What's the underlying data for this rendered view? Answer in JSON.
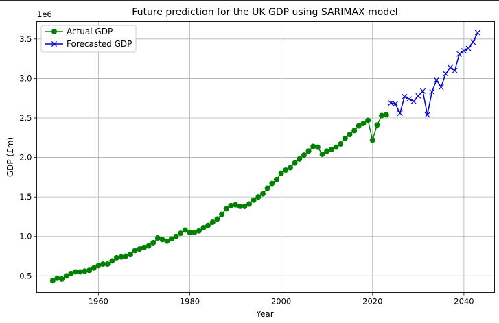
{
  "chart_data": {
    "type": "line",
    "title": "Future prediction for the UK GDP using SARIMAX model",
    "xlabel": "Year",
    "ylabel": "GDP (£m)",
    "y_offset_label": "1e6",
    "xlim": [
      1946.5,
      2046.7
    ],
    "ylim": [
      0.29,
      3.72
    ],
    "x_ticks": [
      1960,
      1980,
      2000,
      2020,
      2040
    ],
    "x_tick_labels": [
      "1960",
      "1980",
      "2000",
      "2020",
      "2040"
    ],
    "y_ticks": [
      0.5,
      1.0,
      1.5,
      2.0,
      2.5,
      3.0,
      3.5
    ],
    "y_tick_labels": [
      "0.5",
      "1.0",
      "1.5",
      "2.0",
      "2.5",
      "3.0",
      "3.5"
    ],
    "grid": true,
    "legend_position": "upper-left",
    "series": [
      {
        "name": "Actual GDP",
        "color": "#008000",
        "marker": "circle",
        "x": [
          1950,
          1951,
          1952,
          1953,
          1954,
          1955,
          1956,
          1957,
          1958,
          1959,
          1960,
          1961,
          1962,
          1963,
          1964,
          1965,
          1966,
          1967,
          1968,
          1969,
          1970,
          1971,
          1972,
          1973,
          1974,
          1975,
          1976,
          1977,
          1978,
          1979,
          1980,
          1981,
          1982,
          1983,
          1984,
          1985,
          1986,
          1987,
          1988,
          1989,
          1990,
          1991,
          1992,
          1993,
          1994,
          1995,
          1996,
          1997,
          1998,
          1999,
          2000,
          2001,
          2002,
          2003,
          2004,
          2005,
          2006,
          2007,
          2008,
          2009,
          2010,
          2011,
          2012,
          2013,
          2014,
          2015,
          2016,
          2017,
          2018,
          2019,
          2020,
          2021,
          2022,
          2023
        ],
        "y": [
          0.44,
          0.47,
          0.46,
          0.5,
          0.53,
          0.55,
          0.55,
          0.56,
          0.57,
          0.6,
          0.63,
          0.65,
          0.65,
          0.69,
          0.73,
          0.74,
          0.75,
          0.77,
          0.82,
          0.84,
          0.86,
          0.88,
          0.92,
          0.98,
          0.96,
          0.94,
          0.97,
          1.0,
          1.04,
          1.08,
          1.05,
          1.05,
          1.07,
          1.11,
          1.14,
          1.18,
          1.22,
          1.28,
          1.35,
          1.39,
          1.4,
          1.38,
          1.38,
          1.41,
          1.46,
          1.5,
          1.54,
          1.61,
          1.67,
          1.72,
          1.8,
          1.84,
          1.87,
          1.93,
          1.98,
          2.03,
          2.08,
          2.14,
          2.13,
          2.04,
          2.08,
          2.1,
          2.13,
          2.17,
          2.24,
          2.29,
          2.34,
          2.4,
          2.43,
          2.47,
          2.22,
          2.41,
          2.53,
          2.54
        ]
      },
      {
        "name": "Forecasted GDP",
        "color": "#0000cc",
        "marker": "x",
        "x": [
          2024,
          2025,
          2026,
          2027,
          2028,
          2029,
          2030,
          2031,
          2032,
          2033,
          2034,
          2035,
          2036,
          2037,
          2038,
          2039,
          2040,
          2041,
          2042,
          2043
        ],
        "y": [
          2.69,
          2.68,
          2.56,
          2.77,
          2.74,
          2.71,
          2.78,
          2.84,
          2.54,
          2.83,
          2.98,
          2.89,
          3.06,
          3.14,
          3.1,
          3.31,
          3.35,
          3.38,
          3.46,
          3.58
        ]
      }
    ]
  }
}
